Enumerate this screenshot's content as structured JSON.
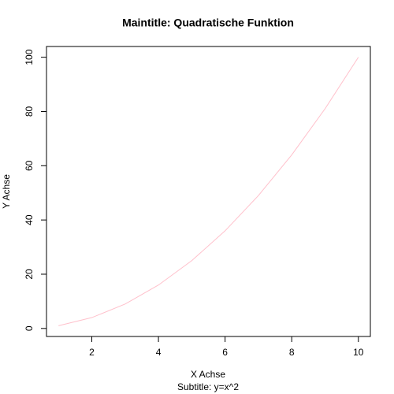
{
  "chart_data": {
    "type": "line",
    "title": "Maintitle: Quadratische Funktion",
    "subtitle": "Subtitle: y=x^2",
    "x_label": "X Achse",
    "y_label": "Y Achse",
    "x": [
      1,
      2,
      3,
      4,
      5,
      6,
      7,
      8,
      9,
      10
    ],
    "series": [
      {
        "color": "#ffc0cb",
        "values": [
          1,
          4,
          9,
          16,
          25,
          36,
          49,
          64,
          81,
          100
        ]
      }
    ],
    "xlim": [
      0.64,
      10.36
    ],
    "ylim": [
      -2.96,
      103.96
    ],
    "xticks": [
      2,
      4,
      6,
      8,
      10
    ],
    "yticks": [
      0,
      20,
      40,
      60,
      80,
      100
    ]
  }
}
